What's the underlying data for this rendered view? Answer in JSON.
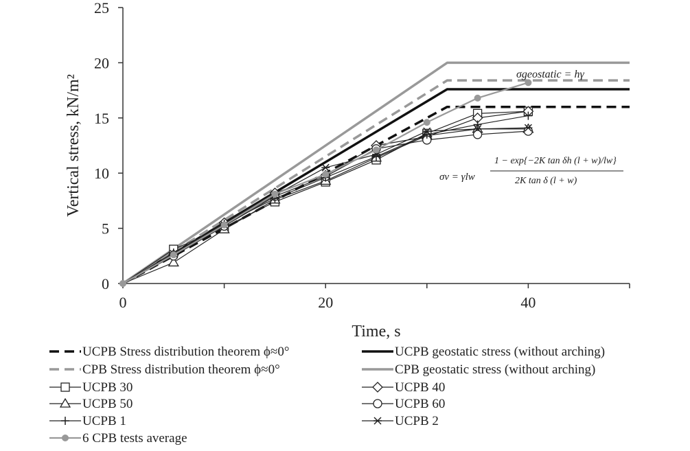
{
  "chart_data": {
    "type": "line",
    "xlabel": "Time, s",
    "ylabel": "Vertical stress, kN/m²",
    "xlim": [
      0,
      50
    ],
    "ylim": [
      0,
      25
    ],
    "xticks": [
      "0",
      "20",
      "40"
    ],
    "yticks": [
      "0",
      "5",
      "10",
      "15",
      "20",
      "25"
    ],
    "series": [
      {
        "name": "UCPB Stress distribution theorem ϕ≈0°",
        "style": "dash-black",
        "x": [
          0,
          32,
          50
        ],
        "y": [
          0,
          16.0,
          16.0
        ]
      },
      {
        "name": "UCPB geostatic stress (without arching)",
        "style": "solid-black",
        "x": [
          0,
          32,
          50
        ],
        "y": [
          0,
          17.6,
          17.6
        ]
      },
      {
        "name": "CPB Stress distribution theorem ϕ≈0°",
        "style": "dash-gray",
        "x": [
          0,
          32,
          50
        ],
        "y": [
          0,
          18.4,
          18.4
        ]
      },
      {
        "name": "CPB geostatic stress (without arching)",
        "style": "solid-gray",
        "x": [
          0,
          32,
          50
        ],
        "y": [
          0,
          20.0,
          20.0
        ]
      },
      {
        "name": "UCPB 30",
        "style": "square",
        "x": [
          0,
          5,
          10,
          15,
          20,
          25,
          30,
          35,
          40
        ],
        "y": [
          0,
          3.1,
          5.1,
          7.4,
          9.2,
          11.2,
          13.6,
          15.4,
          15.6
        ]
      },
      {
        "name": "UCPB 40",
        "style": "diamond",
        "x": [
          0,
          5,
          10,
          15,
          20,
          25,
          30,
          35,
          40
        ],
        "y": [
          0,
          2.6,
          5.5,
          8.2,
          9.8,
          12.5,
          13.3,
          15.0,
          15.6
        ]
      },
      {
        "name": "UCPB 50",
        "style": "triangle",
        "x": [
          0,
          5,
          10,
          15,
          20,
          25,
          30,
          35,
          40
        ],
        "y": [
          0,
          1.9,
          4.9,
          7.6,
          9.3,
          11.4,
          13.4,
          14.0,
          14.0
        ]
      },
      {
        "name": "UCPB 60",
        "style": "circle",
        "x": [
          0,
          5,
          10,
          15,
          20,
          25,
          30,
          35,
          40
        ],
        "y": [
          0,
          2.5,
          5.2,
          7.9,
          9.7,
          12.2,
          13.0,
          13.5,
          13.8
        ]
      },
      {
        "name": "UCPB 1",
        "style": "plus",
        "x": [
          0,
          5,
          10,
          15,
          20,
          25,
          30,
          35,
          40
        ],
        "y": [
          0,
          2.8,
          5.4,
          7.7,
          9.6,
          11.5,
          13.5,
          14.4,
          15.2
        ]
      },
      {
        "name": "UCPB 2",
        "style": "asterisk",
        "x": [
          0,
          5,
          10,
          15,
          20,
          25,
          30,
          35,
          40
        ],
        "y": [
          0,
          2.7,
          5.3,
          8.0,
          10.5,
          11.7,
          13.8,
          14.0,
          14.1
        ]
      },
      {
        "name": "6 CPB tests average",
        "style": "dot-gray",
        "x": [
          0,
          5,
          10,
          15,
          20,
          25,
          30,
          35,
          40
        ],
        "y": [
          0,
          2.6,
          5.3,
          8.1,
          9.9,
          12.1,
          14.6,
          16.8,
          18.2
        ]
      }
    ],
    "annotations": {
      "geostatic": "σgeostatic = hγ",
      "sigma_v_lhs": "σv = γlw",
      "sigma_v_numerator": "1 − exp{−2K tan δh (l + w)/lw}",
      "sigma_v_denominator": "2K tan δ (l + w)"
    }
  }
}
